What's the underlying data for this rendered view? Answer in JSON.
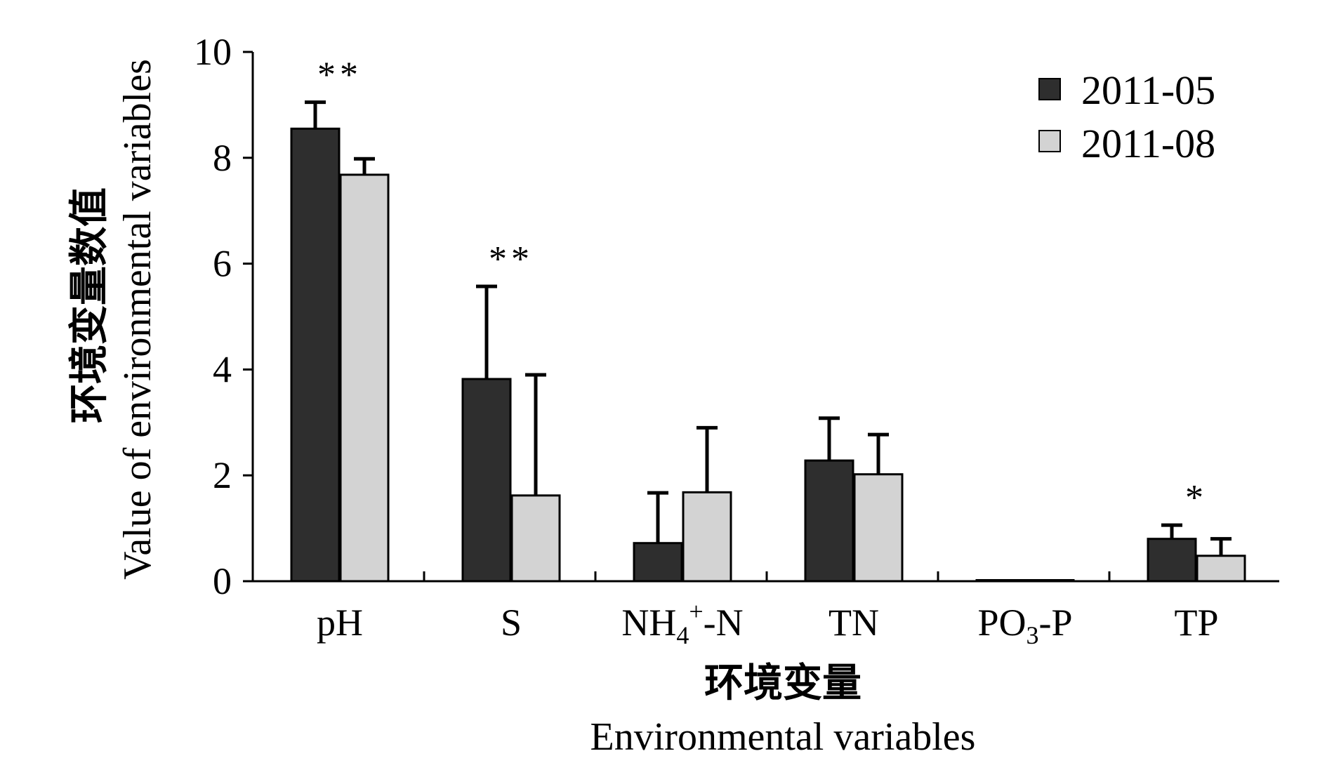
{
  "chart_data": {
    "type": "bar",
    "xlabel_cn": "环境变量",
    "xlabel": "Environmental variables",
    "ylabel_cn": "环境变量数值",
    "ylabel": "Value of environmental variables",
    "ylim": [
      0,
      10
    ],
    "yticks": [
      "0",
      "2",
      "4",
      "6",
      "8",
      "10"
    ],
    "categories": [
      {
        "main": "pH",
        "sub": "",
        "sup": "",
        "tail": ""
      },
      {
        "main": "S",
        "sub": "",
        "sup": "",
        "tail": ""
      },
      {
        "main": "NH",
        "sub": "4",
        "sup": "+",
        "tail": "-N"
      },
      {
        "main": "TN",
        "sub": "",
        "sup": "",
        "tail": ""
      },
      {
        "main": "PO",
        "sub": "3",
        "sup": "",
        "tail": "-P"
      },
      {
        "main": "TP",
        "sub": "",
        "sup": "",
        "tail": ""
      }
    ],
    "series": [
      {
        "name": "2011-05",
        "color": "#2e2e2e",
        "values": [
          8.55,
          3.82,
          0.72,
          2.28,
          0.02,
          0.8
        ],
        "errors": [
          0.5,
          1.75,
          0.95,
          0.8,
          0.0,
          0.26
        ]
      },
      {
        "name": "2011-08",
        "color": "#d3d3d3",
        "values": [
          7.68,
          1.62,
          1.68,
          2.02,
          0.02,
          0.48
        ],
        "errors": [
          0.3,
          2.28,
          1.22,
          0.75,
          0.0,
          0.32
        ]
      }
    ],
    "significance": [
      "**",
      "**",
      "",
      "",
      "",
      "*"
    ],
    "legend_position": "top-right",
    "grid": false
  }
}
